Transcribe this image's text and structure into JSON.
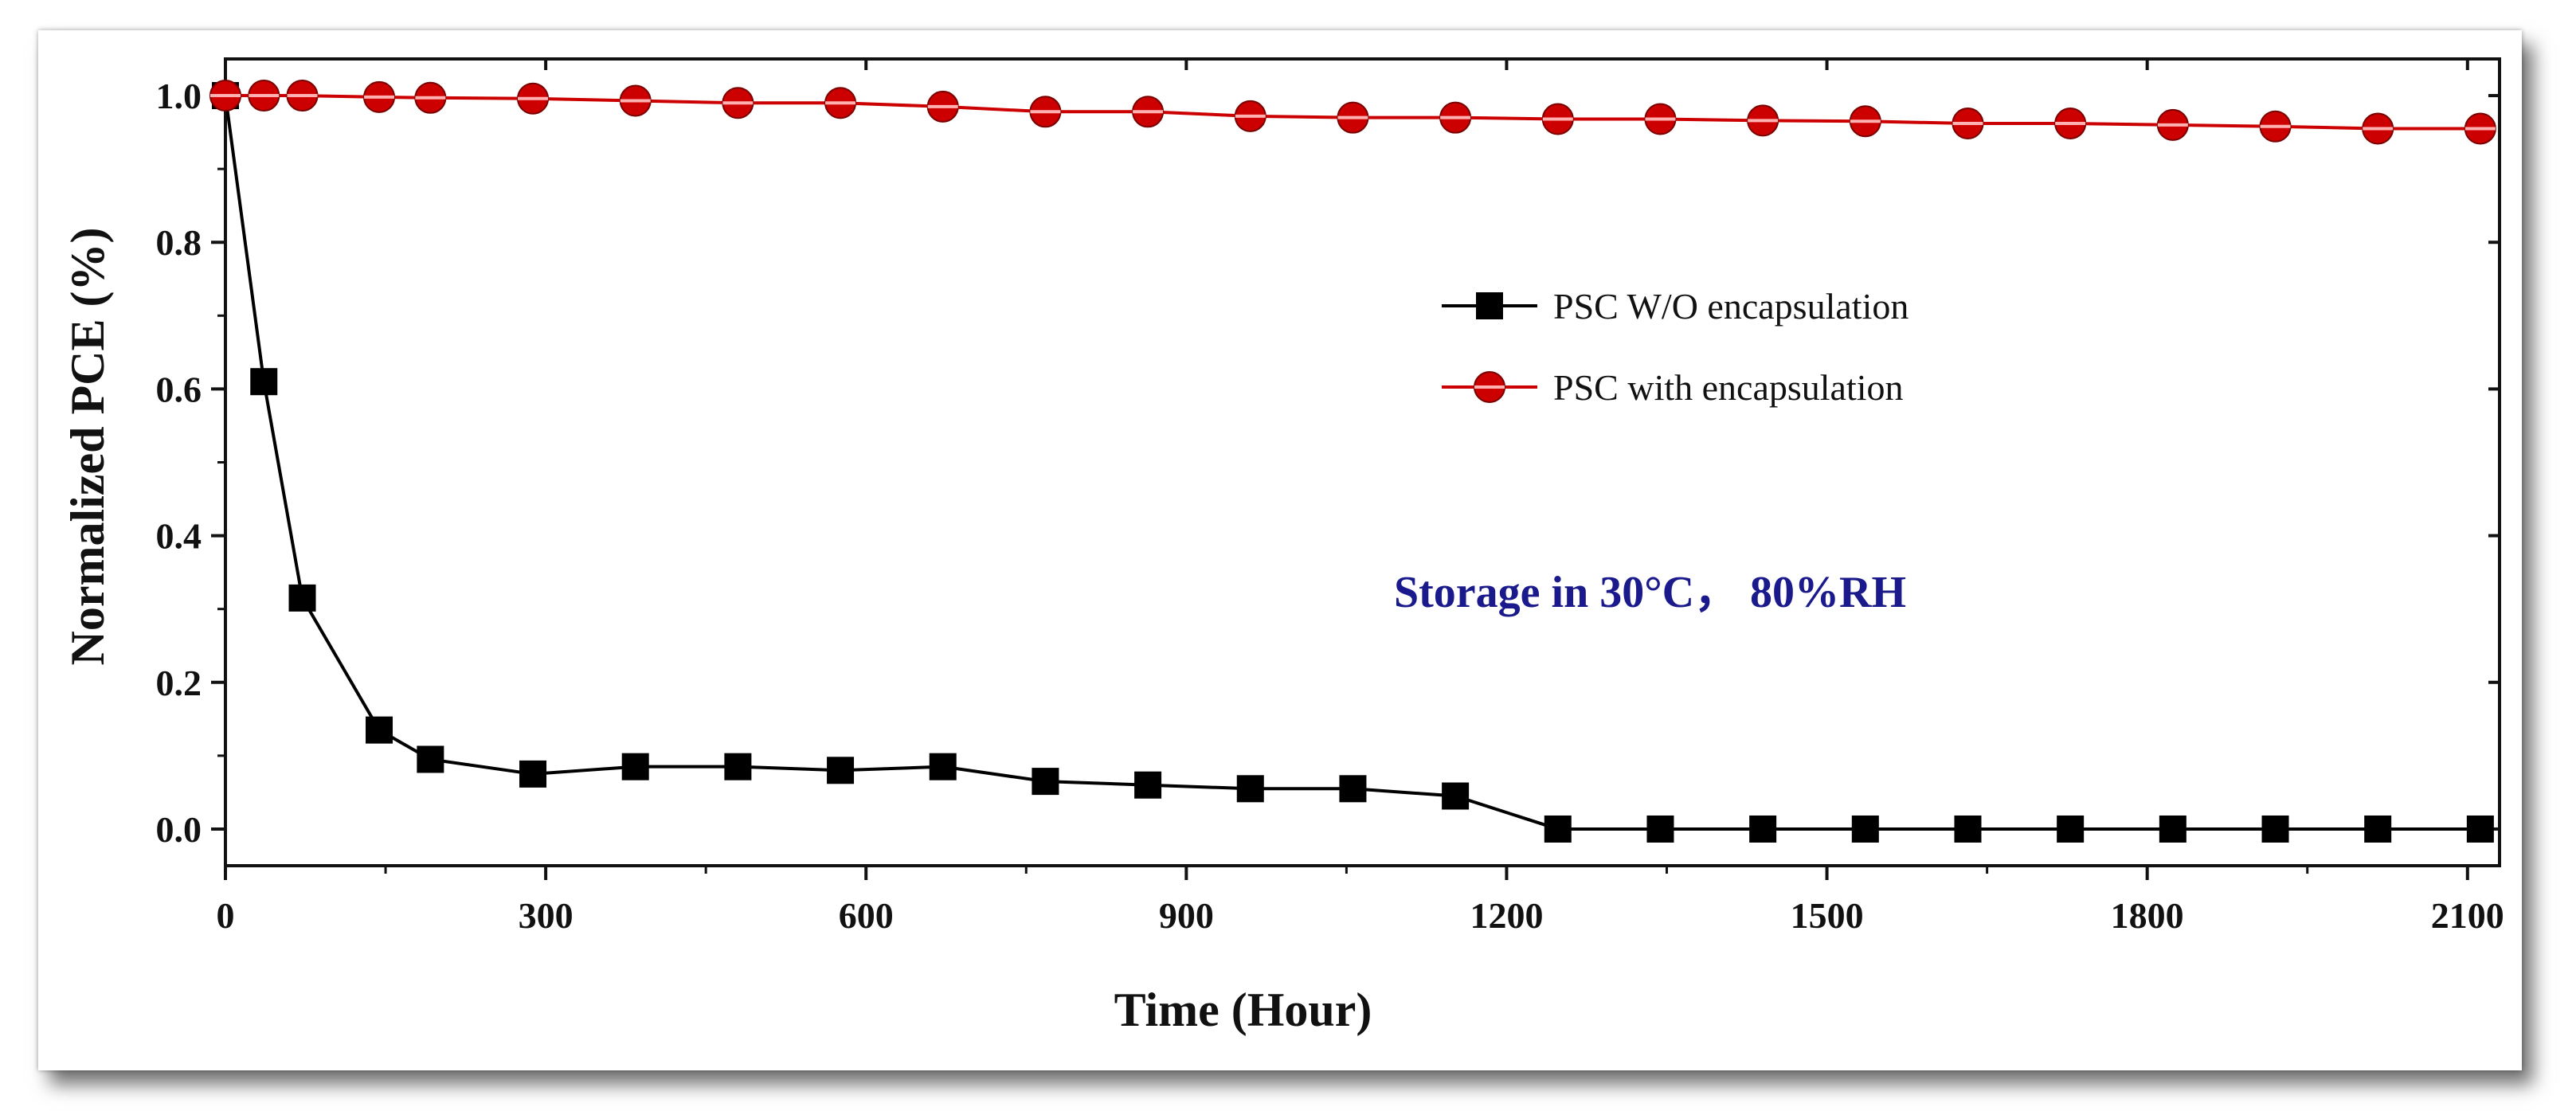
{
  "chart_data": {
    "type": "line",
    "title": "",
    "xlabel": "Time (Hour)",
    "ylabel": "Normalized PCE (%)",
    "xlim": [
      0,
      2130
    ],
    "ylim": [
      -0.05,
      1.05
    ],
    "xticks": [
      0,
      300,
      600,
      900,
      1200,
      1500,
      1800,
      2100
    ],
    "xtick_labels": [
      "0",
      "300",
      "600",
      "900",
      "1200",
      "1500",
      "1800",
      "2100"
    ],
    "yticks": [
      0.0,
      0.2,
      0.4,
      0.6,
      0.8,
      1.0
    ],
    "ytick_labels": [
      "0.0",
      "0.2",
      "0.4",
      "0.6",
      "0.8",
      "1.0"
    ],
    "grid": false,
    "legend_position": "center-right",
    "annotation": "Storage in  30°C， 80%RH",
    "annotation_color": "#1a1a8c",
    "series": [
      {
        "name": "PSC W/O encapsulation",
        "marker": "square",
        "color": "#000000",
        "x": [
          0,
          36,
          72,
          144,
          192,
          288,
          384,
          480,
          576,
          672,
          768,
          864,
          960,
          1056,
          1152,
          1248,
          1344,
          1440,
          1536,
          1632,
          1728,
          1824,
          1920,
          2016,
          2112
        ],
        "y": [
          1.0,
          0.61,
          0.315,
          0.135,
          0.095,
          0.075,
          0.085,
          0.085,
          0.08,
          0.085,
          0.065,
          0.06,
          0.055,
          0.055,
          0.045,
          0.0,
          0.0,
          0.0,
          0.0,
          0.0,
          0.0,
          0.0,
          0.0,
          0.0,
          0.0
        ]
      },
      {
        "name": "PSC with  encapsulation",
        "marker": "circle",
        "color": "#cc0000",
        "x": [
          0,
          36,
          72,
          144,
          192,
          288,
          384,
          480,
          576,
          672,
          768,
          864,
          960,
          1056,
          1152,
          1248,
          1344,
          1440,
          1536,
          1632,
          1728,
          1824,
          1920,
          2016,
          2112
        ],
        "y": [
          1.0,
          1.0,
          1.0,
          0.998,
          0.997,
          0.996,
          0.993,
          0.99,
          0.99,
          0.985,
          0.978,
          0.978,
          0.972,
          0.97,
          0.97,
          0.968,
          0.968,
          0.966,
          0.965,
          0.962,
          0.962,
          0.96,
          0.958,
          0.955,
          0.955
        ]
      }
    ]
  }
}
